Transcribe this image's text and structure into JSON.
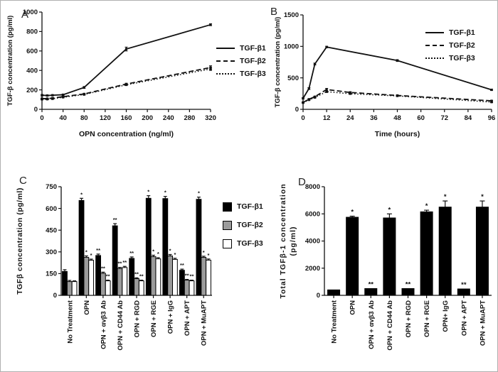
{
  "panels": {
    "a": "A",
    "b": "B",
    "c": "C",
    "d": "D"
  },
  "colors": {
    "axis": "#111111",
    "series_black": "#000000",
    "series_gray": "#9b9b9b",
    "series_white": "#ffffff"
  },
  "chart_data": [
    {
      "panel": "A",
      "type": "line",
      "xlabel": "OPN concentration (ng/ml)",
      "ylabel": "TGF-β concentration (pg/ml)",
      "xlim": [
        0,
        320
      ],
      "ylim": [
        0,
        1000
      ],
      "xticks": [
        0,
        40,
        80,
        120,
        160,
        200,
        240,
        280,
        320
      ],
      "yticks": [
        0,
        200,
        400,
        600,
        800,
        1000
      ],
      "x": [
        0,
        10,
        20,
        40,
        80,
        160,
        320
      ],
      "legend_position": "right-outside",
      "series": [
        {
          "name": "TGF-β1",
          "style": "solid",
          "values": [
            145,
            142,
            145,
            150,
            225,
            620,
            870
          ],
          "errors": [
            8,
            5,
            5,
            5,
            10,
            20,
            10
          ]
        },
        {
          "name": "TGF-β2",
          "style": "dashed",
          "values": [
            110,
            110,
            115,
            130,
            158,
            260,
            430
          ],
          "errors": [
            5,
            4,
            4,
            5,
            5,
            8,
            18
          ]
        },
        {
          "name": "TGF-β3",
          "style": "dotted",
          "values": [
            103,
            104,
            108,
            124,
            152,
            252,
            415
          ],
          "errors": [
            5,
            4,
            4,
            5,
            5,
            8,
            15
          ]
        }
      ]
    },
    {
      "panel": "B",
      "type": "line",
      "xlabel": "Time (hours)",
      "ylabel": "TGF-β concentration (pg/ml)",
      "xlim": [
        0,
        96
      ],
      "ylim": [
        0,
        1500
      ],
      "xticks": [
        0,
        12,
        24,
        36,
        48,
        60,
        72,
        84,
        96
      ],
      "yticks": [
        0,
        500,
        1000,
        1500
      ],
      "x": [
        0,
        3,
        6,
        12,
        24,
        48,
        96
      ],
      "legend_position": "top-right-inside",
      "series": [
        {
          "name": "TGF-β1",
          "style": "solid",
          "x": [
            0,
            3,
            6,
            12,
            48,
            96
          ],
          "values": [
            175,
            330,
            720,
            990,
            775,
            310
          ],
          "errors": [
            10,
            15,
            15,
            12,
            15,
            10
          ]
        },
        {
          "name": "TGF-β2",
          "style": "dashed",
          "values": [
            110,
            160,
            200,
            315,
            268,
            220,
            135
          ],
          "errors": [
            5,
            8,
            8,
            18,
            12,
            8,
            8
          ]
        },
        {
          "name": "TGF-β3",
          "style": "dotted",
          "values": [
            105,
            150,
            188,
            280,
            248,
            213,
            115
          ],
          "errors": [
            5,
            8,
            8,
            12,
            10,
            8,
            8
          ]
        }
      ]
    },
    {
      "panel": "C",
      "type": "bar",
      "ylabel": "TGFβ concentration (pg/ml)",
      "ylim": [
        0,
        750
      ],
      "yticks": [
        0,
        150,
        300,
        450,
        600,
        750
      ],
      "categories": [
        "No Treatment",
        "OPN",
        "OPN + αvβ3 Ab",
        "OPN + CD44 Ab",
        "OPN + RGD",
        "OPN + RGE",
        "OPN + IgG",
        "OPN + APT",
        "OPN + MuAPT"
      ],
      "legend_position": "right-outside",
      "series": [
        {
          "name": "TGF-β1",
          "fill": "#000000",
          "values": [
            165,
            655,
            275,
            480,
            255,
            670,
            668,
            173,
            663
          ],
          "errors": [
            12,
            15,
            10,
            15,
            10,
            18,
            15,
            8,
            15
          ],
          "annotations": [
            "",
            "*",
            "**",
            "**",
            "**",
            "*",
            "*",
            "**",
            "*"
          ]
        },
        {
          "name": "TGF-β2",
          "fill": "#9b9b9b",
          "values": [
            95,
            262,
            152,
            185,
            115,
            267,
            272,
            105,
            262
          ],
          "errors": [
            8,
            10,
            8,
            8,
            6,
            10,
            10,
            5,
            8
          ],
          "annotations": [
            "",
            "*",
            "**",
            "**",
            "**",
            "*",
            "*",
            "**",
            "*"
          ]
        },
        {
          "name": "TGF-β3",
          "fill": "#ffffff",
          "values": [
            95,
            242,
            100,
            192,
            100,
            252,
            248,
            100,
            243
          ],
          "errors": [
            5,
            8,
            5,
            8,
            5,
            8,
            8,
            5,
            8
          ],
          "annotations": [
            "",
            "*",
            "**",
            "**",
            "**",
            "*",
            "*",
            "**",
            "*"
          ]
        }
      ]
    },
    {
      "panel": "D",
      "type": "bar",
      "ylabel": "Total TGFβ-1 concentration",
      "ylabel2": "(pg/ml)",
      "ylim": [
        0,
        8000
      ],
      "yticks": [
        0,
        2000,
        4000,
        6000,
        8000
      ],
      "categories": [
        "No Treatment",
        "OPN",
        "OPN + αvβ3 Ab",
        "OPN + CD44 Ab",
        "OPN + RGD",
        "OPN + RGE",
        "OPN+ IgG",
        "OPN + APT",
        "OPN + MuAPT"
      ],
      "series": [
        {
          "name": "TGF-β1",
          "fill": "#000000",
          "values": [
            400,
            5750,
            500,
            5700,
            500,
            6150,
            6500,
            470,
            6500
          ],
          "errors": [
            0,
            80,
            0,
            300,
            0,
            120,
            450,
            0,
            450
          ],
          "annotations": [
            "",
            "*",
            "**",
            "*",
            "**",
            "*",
            "*",
            "**",
            "*"
          ]
        }
      ]
    }
  ]
}
